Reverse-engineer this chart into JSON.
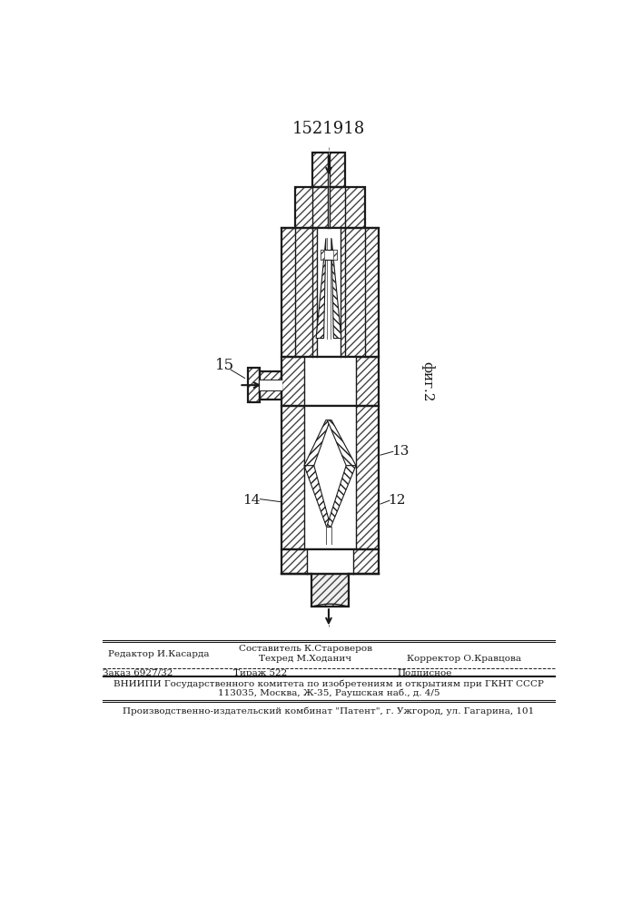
{
  "title": "1521918",
  "fig2_label": "фиг.2",
  "label_15": "15",
  "label_14": "14",
  "label_13": "13",
  "label_12": "12",
  "footer_editor": "Редактор И.Касарда",
  "footer_composer": "Составитель К.Староверов",
  "footer_techred": "Техред М.Ходанич",
  "footer_corrector": "Корректор О.Кравцова",
  "footer_order": "Заказ 6927/32",
  "footer_tirazh": "Тираж 522",
  "footer_podpis": "Подписное",
  "footer_vniip": "ВНИИПИ Государственного комитета по изобретениям и открытиям при ГКНТ СССР",
  "footer_addr": "113035, Москва, Ж-35, Раушская наб., д. 4/5",
  "footer_patent": "Производственно-издательский комбинат \"Патент\", г. Ужгород, ул. Гагарина, 101"
}
